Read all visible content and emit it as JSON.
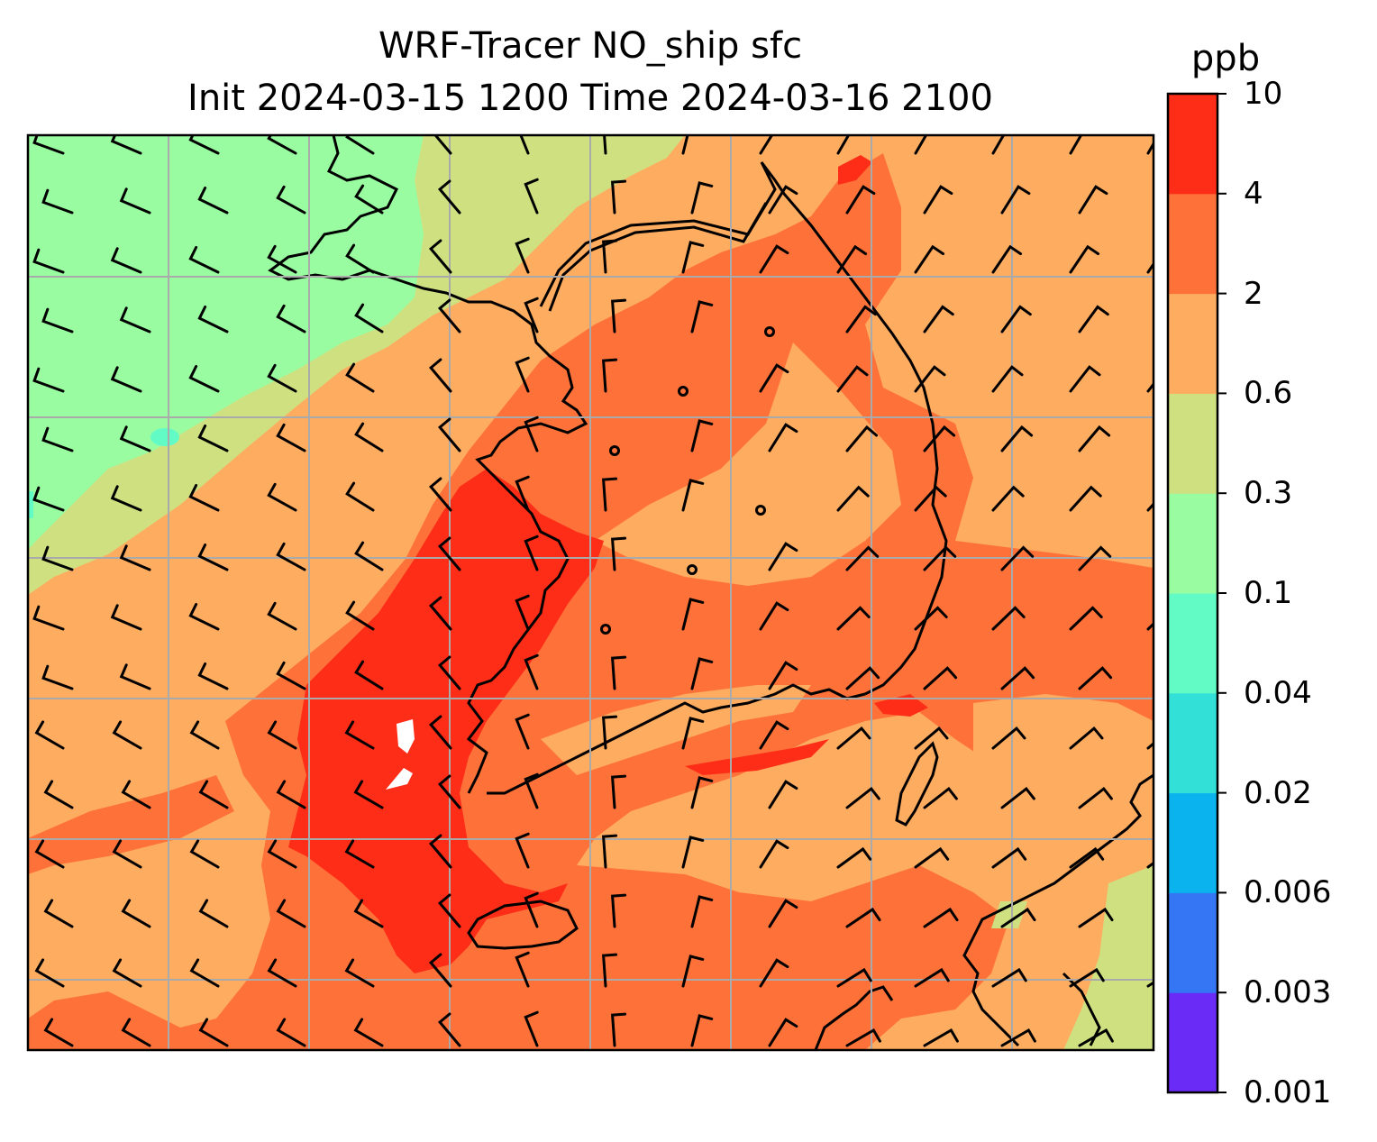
{
  "title": {
    "line1": "WRF-Tracer NO_ship sfc",
    "line2": "Init 2024-03-15 1200 Time 2024-03-16 2100"
  },
  "colorbar": {
    "unit": "ppb",
    "levels": [
      "0.001",
      "0.003",
      "0.006",
      "0.02",
      "0.04",
      "0.1",
      "0.3",
      "0.6",
      "2",
      "4",
      "10"
    ],
    "colors": [
      "#6a2bf7",
      "#3576f5",
      "#0ab2ee",
      "#33e0d8",
      "#63fbc5",
      "#9afca1",
      "#cfe081",
      "#feac60",
      "#fe7138",
      "#fd2d17"
    ]
  },
  "map": {
    "field": "NO_ship",
    "level": "sfc",
    "overlay": "wind barbs",
    "grid": true,
    "missing_color": "#ffffff"
  }
}
